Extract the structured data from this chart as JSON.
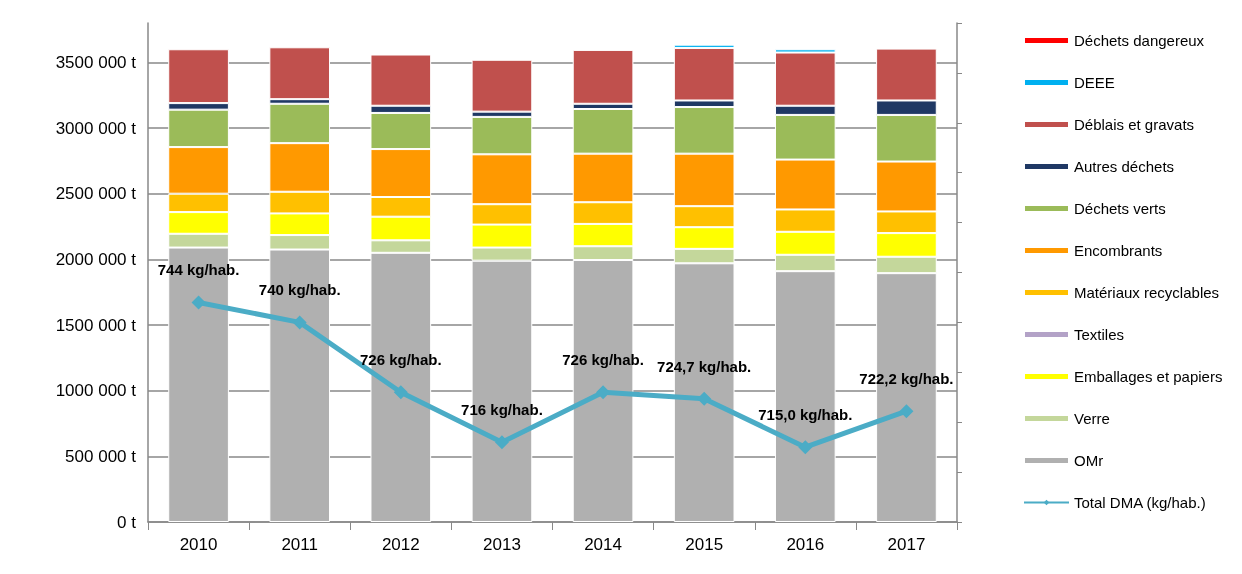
{
  "chart_data": {
    "type": "bar",
    "stacked": true,
    "categories": [
      "2010",
      "2011",
      "2012",
      "2013",
      "2014",
      "2015",
      "2016",
      "2017"
    ],
    "series": [
      {
        "name": "OMr",
        "color": "#b0b0b0",
        "values": [
          2090000,
          2075000,
          2050000,
          1990000,
          1995000,
          1970000,
          1910000,
          1895000
        ]
      },
      {
        "name": "Verre",
        "color": "#c4d79b",
        "values": [
          105000,
          110000,
          95000,
          100000,
          105000,
          110000,
          125000,
          125000
        ]
      },
      {
        "name": "Emballages et papiers",
        "color": "#ffff00",
        "values": [
          165000,
          165000,
          180000,
          175000,
          170000,
          165000,
          175000,
          180000
        ]
      },
      {
        "name": "Textiles",
        "color": "#b3a2c7",
        "values": [
          null,
          null,
          null,
          null,
          null,
          null,
          null,
          null
        ]
      },
      {
        "name": "Matériaux recyclables",
        "color": "#ffc000",
        "values": [
          140000,
          165000,
          150000,
          155000,
          165000,
          160000,
          170000,
          165000
        ]
      },
      {
        "name": "Encombrants",
        "color": "#ff9900",
        "values": [
          355000,
          370000,
          365000,
          380000,
          370000,
          400000,
          380000,
          380000
        ]
      },
      {
        "name": "Déchets verts",
        "color": "#9bbb59",
        "values": [
          285000,
          300000,
          275000,
          285000,
          340000,
          355000,
          340000,
          355000
        ]
      },
      {
        "name": "Autres déchets",
        "color": "#1f3864",
        "values": [
          50000,
          35000,
          55000,
          40000,
          40000,
          50000,
          70000,
          110000
        ]
      },
      {
        "name": "Déblais et gravats",
        "color": "#c0504d",
        "values": [
          410000,
          395000,
          390000,
          395000,
          410000,
          400000,
          405000,
          395000
        ]
      },
      {
        "name": "DEEE",
        "color": "#00b0f0",
        "values": [
          null,
          null,
          null,
          null,
          null,
          25000,
          25000,
          null
        ]
      },
      {
        "name": "Déchets dangereux",
        "color": "#ff0000",
        "values": [
          null,
          null,
          null,
          null,
          null,
          null,
          null,
          null
        ]
      },
      {
        "name": "Total DMA (kg/hab.)",
        "type": "line",
        "axis": "y2",
        "color": "#4bacc6",
        "marker": "diamond",
        "values": [
          744,
          740,
          726,
          716,
          726,
          724.7,
          715.0,
          722.2
        ],
        "value_labels": [
          "744 kg/hab.",
          "740 kg/hab.",
          "726 kg/hab.",
          "716 kg/hab.",
          "726 kg/hab.",
          "724,7 kg/hab.",
          "715,0 kg/hab.",
          "722,2 kg/hab."
        ]
      }
    ],
    "ylim": [
      0,
      3800000
    ],
    "yticks": [
      {
        "value": 0,
        "label": "0 t"
      },
      {
        "value": 500000,
        "label": "500 000 t"
      },
      {
        "value": 1000000,
        "label": "1000 000 t"
      },
      {
        "value": 1500000,
        "label": "1500 000 t"
      },
      {
        "value": 2000000,
        "label": "2000 000 t"
      },
      {
        "value": 2500000,
        "label": "2500 000 t"
      },
      {
        "value": 3000000,
        "label": "3000 000 t"
      },
      {
        "value": 3500000,
        "label": "3500 000 t"
      }
    ],
    "y2lim": [
      700,
      800
    ],
    "grid": "y",
    "legend": "right"
  }
}
